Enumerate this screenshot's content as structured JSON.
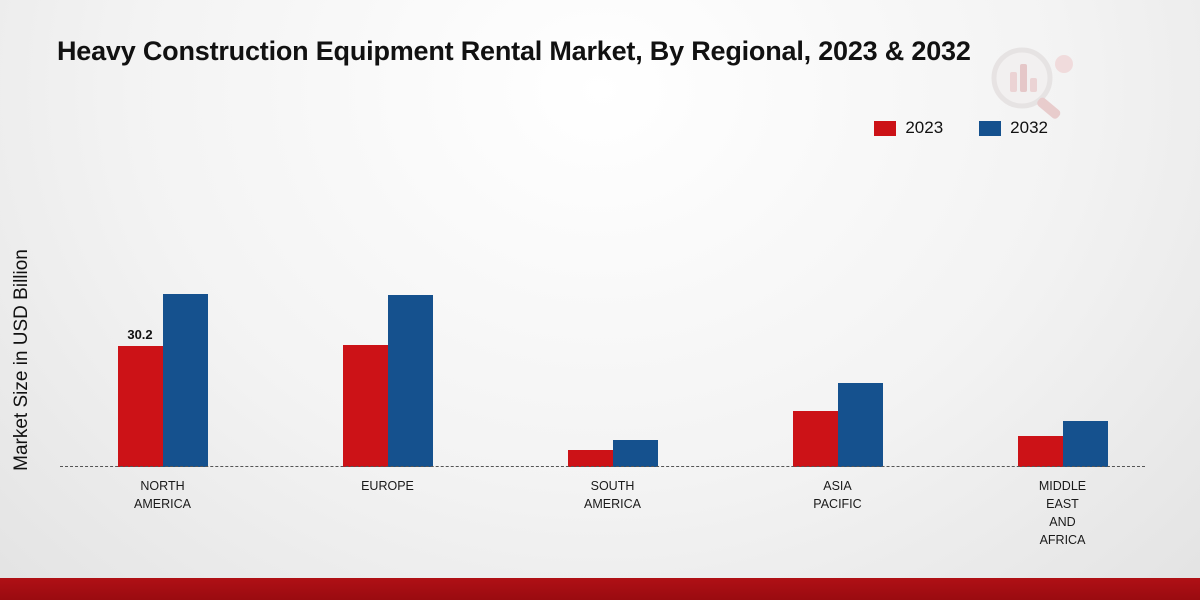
{
  "title": "Heavy Construction Equipment Rental Market, By Regional, 2023 & 2032",
  "ylabel": "Market Size in USD Billion",
  "legend": [
    {
      "label": "2023",
      "color": "#cc1217"
    },
    {
      "label": "2032",
      "color": "#15518e"
    }
  ],
  "colors": {
    "series_2023": "#cc1217",
    "series_2032": "#15518e",
    "bottom_band": "#9e0c11"
  },
  "chart_data": {
    "type": "bar",
    "title": "Heavy Construction Equipment Rental Market, By Regional, 2023 & 2032",
    "xlabel": "",
    "ylabel": "Market Size in USD Billion",
    "ylim": [
      0,
      50
    ],
    "grid": false,
    "legend_position": "top-right",
    "categories": [
      "NORTH\nAMERICA",
      "EUROPE",
      "SOUTH\nAMERICA",
      "ASIA\nPACIFIC",
      "MIDDLE\nEAST\nAND\nAFRICA"
    ],
    "series": [
      {
        "name": "2023",
        "color": "#cc1217",
        "values": [
          30.2,
          30.4,
          4.3,
          13.9,
          7.8
        ]
      },
      {
        "name": "2032",
        "color": "#15518e",
        "values": [
          43.3,
          43.0,
          6.8,
          21.0,
          11.6
        ]
      }
    ],
    "annotations": [
      {
        "category_index": 0,
        "series_index": 0,
        "text": "30.2"
      }
    ]
  }
}
